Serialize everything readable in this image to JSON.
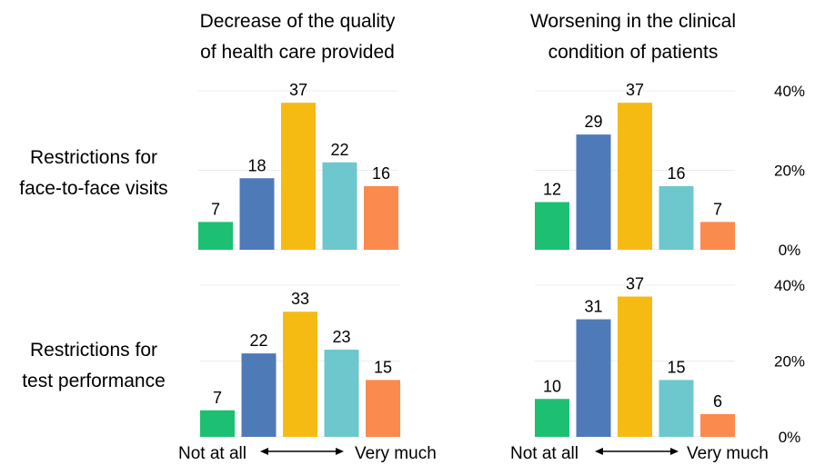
{
  "col_titles": [
    [
      "Decrease of the quality",
      "of health care provided"
    ],
    [
      "Worsening in the clinical",
      "condition of patients"
    ]
  ],
  "row_labels": [
    [
      "Restrictions for",
      "face-to-face visits"
    ],
    [
      "Restrictions for",
      "test performance"
    ]
  ],
  "scale_labels": {
    "low": "Not at all",
    "high": "Very much"
  },
  "colors": [
    "#1dbf73",
    "#4f7ab8",
    "#f6bb13",
    "#6dc8cd",
    "#fb8a4e"
  ],
  "chart_data": [
    {
      "type": "bar",
      "categories": [
        "1",
        "2",
        "3",
        "4",
        "5"
      ],
      "values": [
        7,
        18,
        37,
        22,
        16
      ],
      "ylim": [
        0,
        40
      ]
    },
    {
      "type": "bar",
      "categories": [
        "1",
        "2",
        "3",
        "4",
        "5"
      ],
      "values": [
        12,
        29,
        37,
        16,
        7
      ],
      "ylim": [
        0,
        40
      ],
      "yticks": [
        "0%",
        "20%",
        "40%"
      ]
    },
    {
      "type": "bar",
      "categories": [
        "1",
        "2",
        "3",
        "4",
        "5"
      ],
      "values": [
        7,
        22,
        33,
        23,
        15
      ],
      "ylim": [
        0,
        40
      ]
    },
    {
      "type": "bar",
      "categories": [
        "1",
        "2",
        "3",
        "4",
        "5"
      ],
      "values": [
        10,
        31,
        37,
        15,
        6
      ],
      "ylim": [
        0,
        40
      ],
      "yticks": [
        "0%",
        "20%",
        "40%"
      ]
    }
  ]
}
